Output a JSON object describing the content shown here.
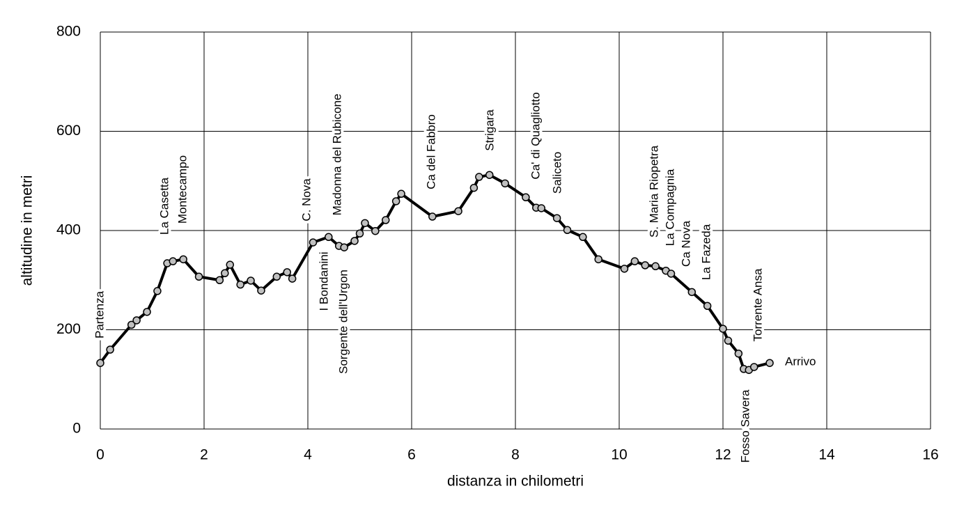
{
  "chart_data": {
    "type": "line",
    "x_label": "distanza in chilometri",
    "y_label": "altitudine  in metri",
    "xlim": [
      0,
      16
    ],
    "xticks": [
      0,
      2,
      4,
      6,
      8,
      10,
      12,
      14,
      16
    ],
    "ylim": [
      0,
      800
    ],
    "yticks": [
      0,
      200,
      400,
      600,
      800
    ],
    "grid": true,
    "x": [
      0,
      0.19,
      0.6,
      0.7,
      0.9,
      1.1,
      1.29,
      1.4,
      1.6,
      1.9,
      2.3,
      2.4,
      2.5,
      2.7,
      2.9,
      3.1,
      3.4,
      3.6,
      3.7,
      4.1,
      4.4,
      4.6,
      4.7,
      4.9,
      5.0,
      5.1,
      5.3,
      5.5,
      5.7,
      5.8,
      6.4,
      6.9,
      7.2,
      7.3,
      7.5,
      7.8,
      8.2,
      8.4,
      8.5,
      8.8,
      9.0,
      9.3,
      9.6,
      10.1,
      10.3,
      10.5,
      10.7,
      10.9,
      11.0,
      11.4,
      11.7,
      12.0,
      12.1,
      12.3,
      12.4,
      12.5,
      12.6,
      12.9
    ],
    "series": [
      {
        "color": "#000000",
        "marker_color": "#c0c0c0",
        "values": [
          133,
          160,
          210,
          219,
          236,
          278,
          334,
          338,
          342,
          307,
          300,
          314,
          331,
          291,
          299,
          279,
          307,
          316,
          303,
          376,
          387,
          369,
          366,
          379,
          394,
          415,
          399,
          421,
          459,
          474,
          428,
          439,
          486,
          508,
          512,
          495,
          467,
          446,
          445,
          425,
          401,
          387,
          342,
          323,
          338,
          330,
          328,
          319,
          313,
          276,
          248,
          202,
          178,
          152,
          121,
          119,
          125,
          133
        ]
      }
    ],
    "annotations": [
      "Partenza",
      "La Casetta",
      "Montecampo",
      "C. Nova",
      "Madonna del Rubicone",
      "I Bondanini",
      "Sorgente dell'Urgon",
      "Ca del Fabbro",
      "Strigara",
      "Ca' di Quagliotto",
      "Saliceto",
      "S. Maria Riopetra",
      "La Compagnia",
      "Ca Nova",
      "La Fazeda",
      "Fosso Savera",
      "Torrente Ansa",
      "Arrivo"
    ]
  }
}
